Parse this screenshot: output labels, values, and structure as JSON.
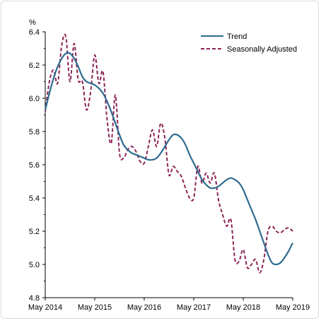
{
  "chart_data": {
    "type": "line",
    "ylabel": "%",
    "ylim": [
      4.8,
      6.4
    ],
    "yticks": [
      4.8,
      5.0,
      5.2,
      5.4,
      5.6,
      5.8,
      6.0,
      6.2,
      6.4
    ],
    "xlim": [
      "2014-05",
      "2019-05"
    ],
    "xticks": [
      "May 2014",
      "May 2015",
      "May 2016",
      "May 2017",
      "May 2018",
      "May 2019"
    ],
    "grid": false,
    "legend_position": "top-right",
    "colors": {
      "trend": "#2e6b8f",
      "seasonally_adjusted": "#8b2556"
    },
    "series": [
      {
        "name": "Trend",
        "style": "solid",
        "x": [
          "2014-05",
          "2014-06",
          "2014-07",
          "2014-08",
          "2014-09",
          "2014-10",
          "2014-11",
          "2014-12",
          "2015-01",
          "2015-02",
          "2015-03",
          "2015-04",
          "2015-05",
          "2015-06",
          "2015-07",
          "2015-08",
          "2015-09",
          "2015-10",
          "2015-11",
          "2015-12",
          "2016-01",
          "2016-02",
          "2016-03",
          "2016-04",
          "2016-05",
          "2016-06",
          "2016-07",
          "2016-08",
          "2016-09",
          "2016-10",
          "2016-11",
          "2016-12",
          "2017-01",
          "2017-02",
          "2017-03",
          "2017-04",
          "2017-05",
          "2017-06",
          "2017-07",
          "2017-08",
          "2017-09",
          "2017-10",
          "2017-11",
          "2017-12",
          "2018-01",
          "2018-02",
          "2018-03",
          "2018-04",
          "2018-05",
          "2018-06",
          "2018-07",
          "2018-08",
          "2018-09",
          "2018-10",
          "2018-11",
          "2018-12",
          "2019-01",
          "2019-02",
          "2019-03",
          "2019-04",
          "2019-05"
        ],
        "values": [
          5.93,
          6.03,
          6.12,
          6.19,
          6.24,
          6.27,
          6.27,
          6.24,
          6.19,
          6.13,
          6.1,
          6.09,
          6.08,
          6.06,
          6.03,
          5.98,
          5.92,
          5.85,
          5.78,
          5.72,
          5.69,
          5.67,
          5.66,
          5.65,
          5.64,
          5.63,
          5.63,
          5.64,
          5.67,
          5.71,
          5.75,
          5.78,
          5.78,
          5.76,
          5.72,
          5.66,
          5.61,
          5.56,
          5.51,
          5.48,
          5.46,
          5.46,
          5.47,
          5.49,
          5.51,
          5.52,
          5.51,
          5.49,
          5.45,
          5.39,
          5.33,
          5.27,
          5.2,
          5.13,
          5.06,
          5.01,
          5.0,
          5.01,
          5.04,
          5.08,
          5.13
        ]
      },
      {
        "name": "Seasonally Adjusted",
        "style": "dashed",
        "x": [
          "2014-05",
          "2014-06",
          "2014-07",
          "2014-08",
          "2014-09",
          "2014-10",
          "2014-11",
          "2014-12",
          "2015-01",
          "2015-02",
          "2015-03",
          "2015-04",
          "2015-05",
          "2015-06",
          "2015-07",
          "2015-08",
          "2015-09",
          "2015-10",
          "2015-11",
          "2015-12",
          "2016-01",
          "2016-02",
          "2016-03",
          "2016-04",
          "2016-05",
          "2016-06",
          "2016-07",
          "2016-08",
          "2016-09",
          "2016-10",
          "2016-11",
          "2016-12",
          "2017-01",
          "2017-02",
          "2017-03",
          "2017-04",
          "2017-05",
          "2017-06",
          "2017-07",
          "2017-08",
          "2017-09",
          "2017-10",
          "2017-11",
          "2017-12",
          "2018-01",
          "2018-02",
          "2018-03",
          "2018-04",
          "2018-05",
          "2018-06",
          "2018-07",
          "2018-08",
          "2018-09",
          "2018-10",
          "2018-11",
          "2018-12",
          "2019-01",
          "2019-02",
          "2019-03",
          "2019-04",
          "2019-05"
        ],
        "values": [
          5.92,
          6.1,
          6.17,
          6.09,
          6.32,
          6.37,
          6.1,
          6.33,
          6.11,
          6.1,
          5.93,
          6.04,
          6.26,
          6.09,
          6.16,
          5.87,
          5.73,
          6.02,
          5.67,
          5.64,
          5.69,
          5.71,
          5.68,
          5.62,
          5.61,
          5.71,
          5.81,
          5.71,
          5.85,
          5.76,
          5.54,
          5.59,
          5.56,
          5.53,
          5.46,
          5.4,
          5.4,
          5.59,
          5.49,
          5.55,
          5.49,
          5.55,
          5.39,
          5.3,
          5.23,
          5.27,
          5.03,
          5.02,
          5.09,
          4.98,
          5.0,
          5.03,
          4.95,
          5.03,
          5.2,
          5.23,
          5.2,
          5.19,
          5.21,
          5.22,
          5.2
        ]
      }
    ]
  }
}
